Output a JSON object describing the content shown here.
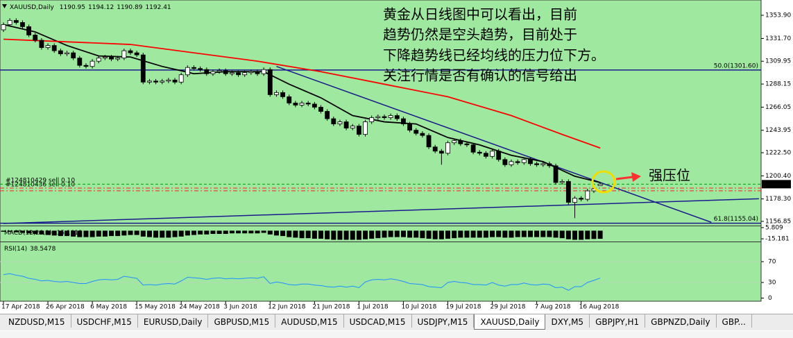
{
  "chart_data": {
    "type": "candlestick",
    "symbol": "XAUUSD,Daily",
    "categories": [
      "17 Apr 2018",
      null,
      null,
      null,
      null,
      null,
      null,
      "26 Apr 2018",
      null,
      null,
      null,
      null,
      null,
      null,
      "6 May 2018",
      null,
      null,
      null,
      null,
      null,
      null,
      "15 May 2018",
      null,
      null,
      null,
      null,
      null,
      null,
      "24 May 2018",
      null,
      null,
      null,
      null,
      null,
      null,
      "3 Jun 2018",
      null,
      null,
      null,
      null,
      null,
      null,
      "12 Jun 2018",
      null,
      null,
      null,
      null,
      null,
      null,
      "21 Jun 2018",
      null,
      null,
      null,
      null,
      null,
      null,
      "1 Jul 2018",
      null,
      null,
      null,
      null,
      null,
      null,
      "10 Jul 2018",
      null,
      null,
      null,
      null,
      null,
      null,
      "19 Jul 2018",
      null,
      null,
      null,
      null,
      null,
      null,
      "29 Jul 2018",
      null,
      null,
      null,
      null,
      null,
      null,
      "7 Aug 2018",
      null,
      null,
      null,
      null,
      null,
      null,
      "16 Aug 2018",
      null,
      null,
      null
    ],
    "open": [
      1340,
      1345,
      1349,
      1347,
      1343,
      1335,
      1330,
      1323,
      1325,
      1320,
      1317,
      1318,
      1313,
      1306,
      1305,
      1310,
      1313,
      1314,
      1312,
      1313,
      1320,
      1318,
      1316,
      1290,
      1291,
      1290,
      1291,
      1292,
      1290,
      1297,
      1304,
      1303,
      1302,
      1298,
      1300,
      1301,
      1298,
      1299,
      1297,
      1299,
      1300,
      1298,
      1302,
      1278,
      1280,
      1276,
      1270,
      1268,
      1270,
      1269,
      1266,
      1262,
      1255,
      1250,
      1252,
      1246,
      1248,
      1240,
      1252,
      1256,
      1257,
      1256,
      1258,
      1255,
      1250,
      1244,
      1241,
      1239,
      1228,
      1224,
      1222,
      1232,
      1234,
      1231,
      1230,
      1223,
      1222,
      1219,
      1224,
      1216,
      1211,
      1214,
      1213,
      1216,
      1212,
      1211,
      1212,
      1210,
      1194,
      1195,
      1175,
      1179,
      1178,
      1186,
      1190.95
    ],
    "high": [
      1347,
      1351,
      1351,
      1349,
      1345,
      1337,
      1332,
      1327,
      1327,
      1322,
      1320,
      1320,
      1315,
      1308,
      1312,
      1315,
      1316,
      1316,
      1315,
      1322,
      1322,
      1320,
      1318,
      1293,
      1293,
      1293,
      1294,
      1294,
      1299,
      1306,
      1306,
      1305,
      1304,
      1302,
      1303,
      1303,
      1301,
      1301,
      1301,
      1302,
      1302,
      1304,
      1304,
      1282,
      1282,
      1278,
      1272,
      1272,
      1272,
      1271,
      1268,
      1264,
      1257,
      1254,
      1254,
      1250,
      1250,
      1254,
      1258,
      1259,
      1259,
      1260,
      1260,
      1257,
      1252,
      1246,
      1243,
      1241,
      1230,
      1226,
      1234,
      1236,
      1236,
      1233,
      1232,
      1225,
      1224,
      1226,
      1226,
      1218,
      1216,
      1216,
      1218,
      1218,
      1214,
      1214,
      1214,
      1212,
      1197,
      1197,
      1181,
      1181,
      1188,
      1190,
      1194.12
    ],
    "low": [
      1338,
      1343,
      1345,
      1341,
      1333,
      1328,
      1321,
      1321,
      1318,
      1315,
      1315,
      1311,
      1304,
      1303,
      1303,
      1308,
      1311,
      1310,
      1310,
      1311,
      1316,
      1314,
      1288,
      1288,
      1288,
      1288,
      1289,
      1288,
      1288,
      1295,
      1301,
      1300,
      1296,
      1296,
      1298,
      1296,
      1296,
      1295,
      1295,
      1297,
      1296,
      1296,
      1276,
      1276,
      1274,
      1268,
      1266,
      1266,
      1267,
      1264,
      1260,
      1253,
      1248,
      1248,
      1244,
      1244,
      1238,
      1238,
      1250,
      1254,
      1254,
      1254,
      1253,
      1248,
      1242,
      1239,
      1237,
      1226,
      1222,
      1211,
      1220,
      1230,
      1229,
      1228,
      1221,
      1220,
      1217,
      1217,
      1214,
      1209,
      1209,
      1211,
      1211,
      1210,
      1209,
      1209,
      1208,
      1192,
      1192,
      1173,
      1160,
      1176,
      1176,
      1184,
      1190.89
    ],
    "close": [
      1345,
      1349,
      1347,
      1343,
      1335,
      1330,
      1323,
      1325,
      1320,
      1317,
      1318,
      1313,
      1306,
      1305,
      1310,
      1313,
      1314,
      1312,
      1313,
      1320,
      1318,
      1316,
      1290,
      1291,
      1290,
      1291,
      1292,
      1290,
      1297,
      1304,
      1303,
      1302,
      1298,
      1300,
      1301,
      1298,
      1299,
      1297,
      1299,
      1300,
      1298,
      1302,
      1278,
      1280,
      1276,
      1270,
      1268,
      1270,
      1269,
      1266,
      1262,
      1255,
      1250,
      1252,
      1246,
      1248,
      1240,
      1252,
      1256,
      1257,
      1256,
      1258,
      1255,
      1250,
      1244,
      1241,
      1239,
      1228,
      1224,
      1222,
      1232,
      1234,
      1231,
      1230,
      1223,
      1222,
      1219,
      1224,
      1216,
      1211,
      1214,
      1213,
      1216,
      1212,
      1211,
      1212,
      1210,
      1194,
      1195,
      1175,
      1179,
      1178,
      1186,
      1188,
      1192.41
    ],
    "up_color": "#ffffff",
    "down_color": "#000000",
    "background": "#9fe89f",
    "ylim": [
      1152.84,
      1367.17
    ],
    "yticks": [
      {
        "value": 1353.9,
        "label": "1353.90"
      },
      {
        "value": 1331.7,
        "label": "1331.70"
      },
      1309.95,
      1288.15,
      1266.05,
      1243.95,
      {
        "value": 1222.5,
        "label": "1222.50"
      },
      {
        "value": 1200.4,
        "label": "1200.40"
      },
      {
        "value": 1178.3,
        "label": "1178.30"
      },
      1156.85
    ],
    "moving_averages": [
      {
        "color": "#000000",
        "x": [
          0,
          5,
          10,
          15,
          20,
          25,
          30,
          35,
          41,
          45,
          50,
          55,
          60,
          65,
          70,
          75,
          80,
          85,
          90,
          94
        ],
        "values": [
          1345,
          1338,
          1325,
          1315,
          1314,
          1305,
          1298,
          1300,
          1300,
          1288,
          1275,
          1258,
          1252,
          1250,
          1237,
          1230,
          1220,
          1214,
          1200,
          1194
        ]
      },
      {
        "color": "#ff0000",
        "x": [
          0,
          20,
          40,
          50,
          60,
          70,
          80,
          88,
          94
        ],
        "values": [
          1331,
          1326,
          1310,
          1300,
          1288,
          1276,
          1258,
          1240,
          1227
        ]
      }
    ],
    "trendlines": [
      {
        "color": "#1a1a8c",
        "x": [
          43,
          111.5
        ],
        "values": [
          1305,
          1156
        ]
      },
      {
        "color": "#1a1a8c",
        "x": [
          0,
          119
        ],
        "values": [
          1154.8,
          1178.5
        ]
      }
    ],
    "levels": [
      {
        "value": 1301.6,
        "label": "50.0(1301.60)",
        "color": "#1a1a8c"
      },
      {
        "value": 1155.04,
        "label": "61.8(1155.04)",
        "color": "#1a1a8c"
      }
    ],
    "orders": [
      {
        "label": "#124810429 sell 0.10",
        "value": 1188.7,
        "color": "#ff2020"
      },
      {
        "label": "#124810436 sell 0.10",
        "value": 1186.1,
        "color": "#ff2020"
      }
    ],
    "price_line_color": "#00a000",
    "macd": {
      "name": "MACD(12,26,9)",
      "color": "#000000",
      "ylim": [
        -19,
        7
      ],
      "yticks": [
        5.809,
        -15.181
      ],
      "values": [
        -2,
        -2,
        -3,
        -4,
        -5,
        -6,
        -7,
        -8,
        -9,
        -10,
        -10,
        -11,
        -12,
        -12,
        -12,
        -11,
        -11,
        -10,
        -10,
        -9,
        -8,
        -8,
        -11,
        -12,
        -13,
        -13,
        -13,
        -12,
        -11,
        -9,
        -8,
        -7,
        -7,
        -6,
        -6,
        -6,
        -5,
        -5,
        -5,
        -5,
        -5,
        -4,
        -7,
        -9,
        -10,
        -12,
        -13,
        -14,
        -14,
        -15,
        -15,
        -16,
        -17,
        -17,
        -17,
        -17,
        -17,
        -16,
        -15,
        -14,
        -13,
        -12,
        -12,
        -12,
        -13,
        -13,
        -14,
        -15,
        -16,
        -16,
        -15,
        -14,
        -13,
        -13,
        -13,
        -13,
        -13,
        -12,
        -12,
        -13,
        -13,
        -12,
        -12,
        -12,
        -12,
        -12,
        -12,
        -13,
        -14,
        -16,
        -17,
        -17,
        -16,
        -15.5,
        -15.1811
      ]
    },
    "rsi": {
      "name": "RSI(14)",
      "color": "#1e90ff",
      "ylim": [
        0,
        100
      ],
      "yticks": [
        70,
        30,
        0
      ],
      "values": [
        45,
        47,
        44,
        42,
        38,
        36,
        33,
        34,
        32,
        31,
        32,
        30,
        28,
        28,
        32,
        35,
        36,
        35,
        36,
        42,
        40,
        38,
        25,
        26,
        25,
        27,
        28,
        27,
        33,
        40,
        39,
        38,
        36,
        38,
        39,
        37,
        38,
        37,
        38,
        39,
        38,
        41,
        28,
        31,
        29,
        26,
        25,
        27,
        27,
        25,
        24,
        22,
        21,
        23,
        21,
        23,
        20,
        31,
        35,
        36,
        35,
        37,
        35,
        32,
        28,
        27,
        26,
        22,
        21,
        20,
        30,
        32,
        30,
        29,
        26,
        26,
        25,
        30,
        25,
        23,
        26,
        26,
        29,
        26,
        25,
        27,
        26,
        20,
        21,
        15,
        22,
        22,
        30,
        34,
        38.5478
      ]
    }
  },
  "annotation": {
    "lines": [
      "黄金从日线图中可以看出，目前",
      "趋势仍然是空头趋势，目前处于",
      "下降趋势线已经均线的压力位下方。",
      "关注行情是否有确认的信号给出"
    ],
    "label": "强压位"
  },
  "tabs": {
    "items": [
      "NZDUSD,M15",
      "USDCHF,M15",
      "EURUSD,Daily",
      "GBPUSD,M15",
      "AUDUSD,M15",
      "USDCAD,M15",
      "USDJPY,M15",
      "XAUUSD,Daily",
      "DXY,M5",
      "GBPJPY,H1",
      "GBPNZD,Daily",
      "GBP..."
    ],
    "active": 7
  }
}
